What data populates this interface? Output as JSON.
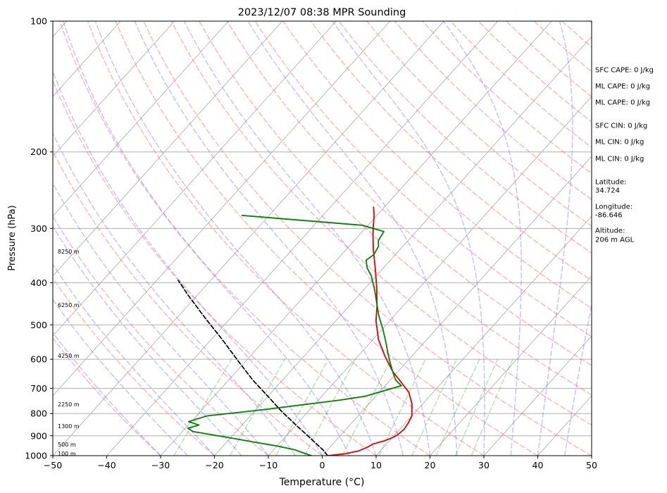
{
  "chart_data": {
    "type": "line",
    "title": "2023/12/07 08:38 MPR Sounding",
    "xlabel": "Temperature (°C)",
    "ylabel": "Pressure (hPa)",
    "xlim": [
      -50,
      50
    ],
    "ylim": [
      1000,
      100
    ],
    "y_scale": "log",
    "skew": true,
    "grid": true,
    "x_ticks": [
      "−50",
      "−40",
      "−30",
      "−20",
      "−10",
      "0",
      "10",
      "20",
      "30",
      "40",
      "50"
    ],
    "y_ticks": [
      "100",
      "200",
      "300",
      "400",
      "500",
      "600",
      "700",
      "800",
      "900",
      "1000"
    ],
    "height_labels": [
      "8250 m",
      "6250 m",
      "4250 m",
      "2250 m",
      "1300 m",
      "500 m",
      "100 m"
    ],
    "side_text": [
      "SFC CAPE: 0 J/kg",
      "ML CAPE: 0 J/kg",
      "ML CAPE: 0 J/kg",
      "SFC CIN: 0 J/kg",
      "ML CIN: 0 J/kg",
      "ML CIN: 0 J/kg",
      "Latitude:",
      "34.724",
      "Longitude:",
      "-86.646",
      "Altitude:",
      "206 m AGL"
    ],
    "series": [
      {
        "color": "#e00000",
        "points": [
          [
            1,
            1000
          ],
          [
            4,
            990
          ],
          [
            6,
            975
          ],
          [
            7,
            955
          ],
          [
            7.5,
            940
          ],
          [
            9,
            925
          ],
          [
            10,
            910
          ],
          [
            10.5,
            895
          ],
          [
            10.8,
            870
          ],
          [
            10.5,
            840
          ],
          [
            10,
            810
          ],
          [
            8,
            760
          ],
          [
            5.5,
            715
          ],
          [
            3,
            685
          ],
          [
            -1,
            640
          ],
          [
            -5,
            590
          ],
          [
            -9,
            540
          ],
          [
            -12.5,
            490
          ],
          [
            -15,
            450
          ],
          [
            -18,
            410
          ],
          [
            -21.5,
            370
          ],
          [
            -25,
            335
          ],
          [
            -27.5,
            310
          ],
          [
            -29,
            295
          ],
          [
            -30.5,
            280
          ],
          [
            -32,
            268
          ]
        ]
      },
      {
        "color": "#008000",
        "points": [
          [
            -2,
            1000
          ],
          [
            -4,
            985
          ],
          [
            -6,
            970
          ],
          [
            -10,
            950
          ],
          [
            -15,
            930
          ],
          [
            -20,
            910
          ],
          [
            -28,
            880
          ],
          [
            -29.5,
            865
          ],
          [
            -28,
            850
          ],
          [
            -30.5,
            835
          ],
          [
            -28,
            810
          ],
          [
            -19,
            785
          ],
          [
            -6,
            745
          ],
          [
            -2,
            730
          ],
          [
            3,
            690
          ],
          [
            1,
            670
          ],
          [
            -1,
            640
          ],
          [
            -3,
            610
          ],
          [
            -5,
            580
          ],
          [
            -7,
            550
          ],
          [
            -10,
            510
          ],
          [
            -13,
            475
          ],
          [
            -15,
            450
          ],
          [
            -18,
            415
          ],
          [
            -21,
            385
          ],
          [
            -23,
            370
          ],
          [
            -24.5,
            355
          ],
          [
            -24,
            345
          ],
          [
            -24.5,
            330
          ],
          [
            -25.5,
            320
          ],
          [
            -26,
            305
          ],
          [
            -31,
            295
          ],
          [
            -50,
            283
          ],
          [
            -55,
            280
          ]
        ]
      },
      {
        "color": "#000000",
        "dashed": true,
        "points": [
          [
            1,
            1000
          ],
          [
            -0.8,
            970
          ],
          [
            -3,
            940
          ],
          [
            -6,
            900
          ],
          [
            -10,
            850
          ],
          [
            -15,
            790
          ],
          [
            -20,
            730
          ],
          [
            -25.5,
            670
          ],
          [
            -31,
            610
          ],
          [
            -38,
            540
          ],
          [
            -45,
            480
          ],
          [
            -52,
            425
          ],
          [
            -56,
            395
          ]
        ]
      }
    ]
  }
}
